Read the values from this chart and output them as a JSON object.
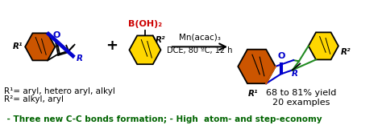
{
  "bg_color": "#ffffff",
  "text_color": "#000000",
  "green_color": "#228B22",
  "blue_color": "#0000CC",
  "red_color": "#CC0000",
  "orange_color": "#CC5500",
  "yellow_color": "#FFD700",
  "dark_green_color": "#006400",
  "reaction_arrow_text1": "Mn(acac)₃",
  "reaction_arrow_text2": "DCE, 80 ºC, 12 h",
  "plus_sign": "+",
  "boronic_label": "B(OH)₂",
  "r1_label": "R¹",
  "r2_label": "R²",
  "r_label": "R",
  "footnote1": "R¹= aryl, hetero aryl, alkyl",
  "footnote2": "R²= alkyl, aryl",
  "yield_text1": "68 to 81% yield",
  "yield_text2": "20 examples",
  "bottom_text": " - Three new C-C bonds formation; - High  atom- and step-economy",
  "o_label": "O",
  "figsize": [
    4.74,
    1.61
  ],
  "dpi": 100
}
